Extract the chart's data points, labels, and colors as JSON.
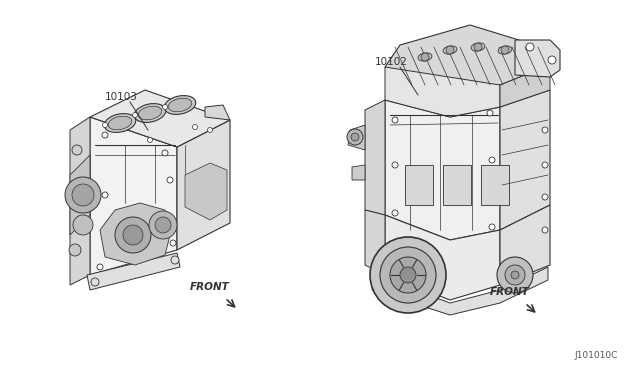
{
  "background_color": "#ffffff",
  "fig_width": 6.4,
  "fig_height": 3.72,
  "dpi": 100,
  "label_left_part": "10103",
  "label_right_part": "10102",
  "label_front": "FRONT",
  "diagram_code": "J101010C",
  "text_color": "#333333",
  "line_color": "#333333",
  "light_gray": "#e8e8e8",
  "mid_gray": "#d0d0d0",
  "dark_gray": "#aaaaaa"
}
